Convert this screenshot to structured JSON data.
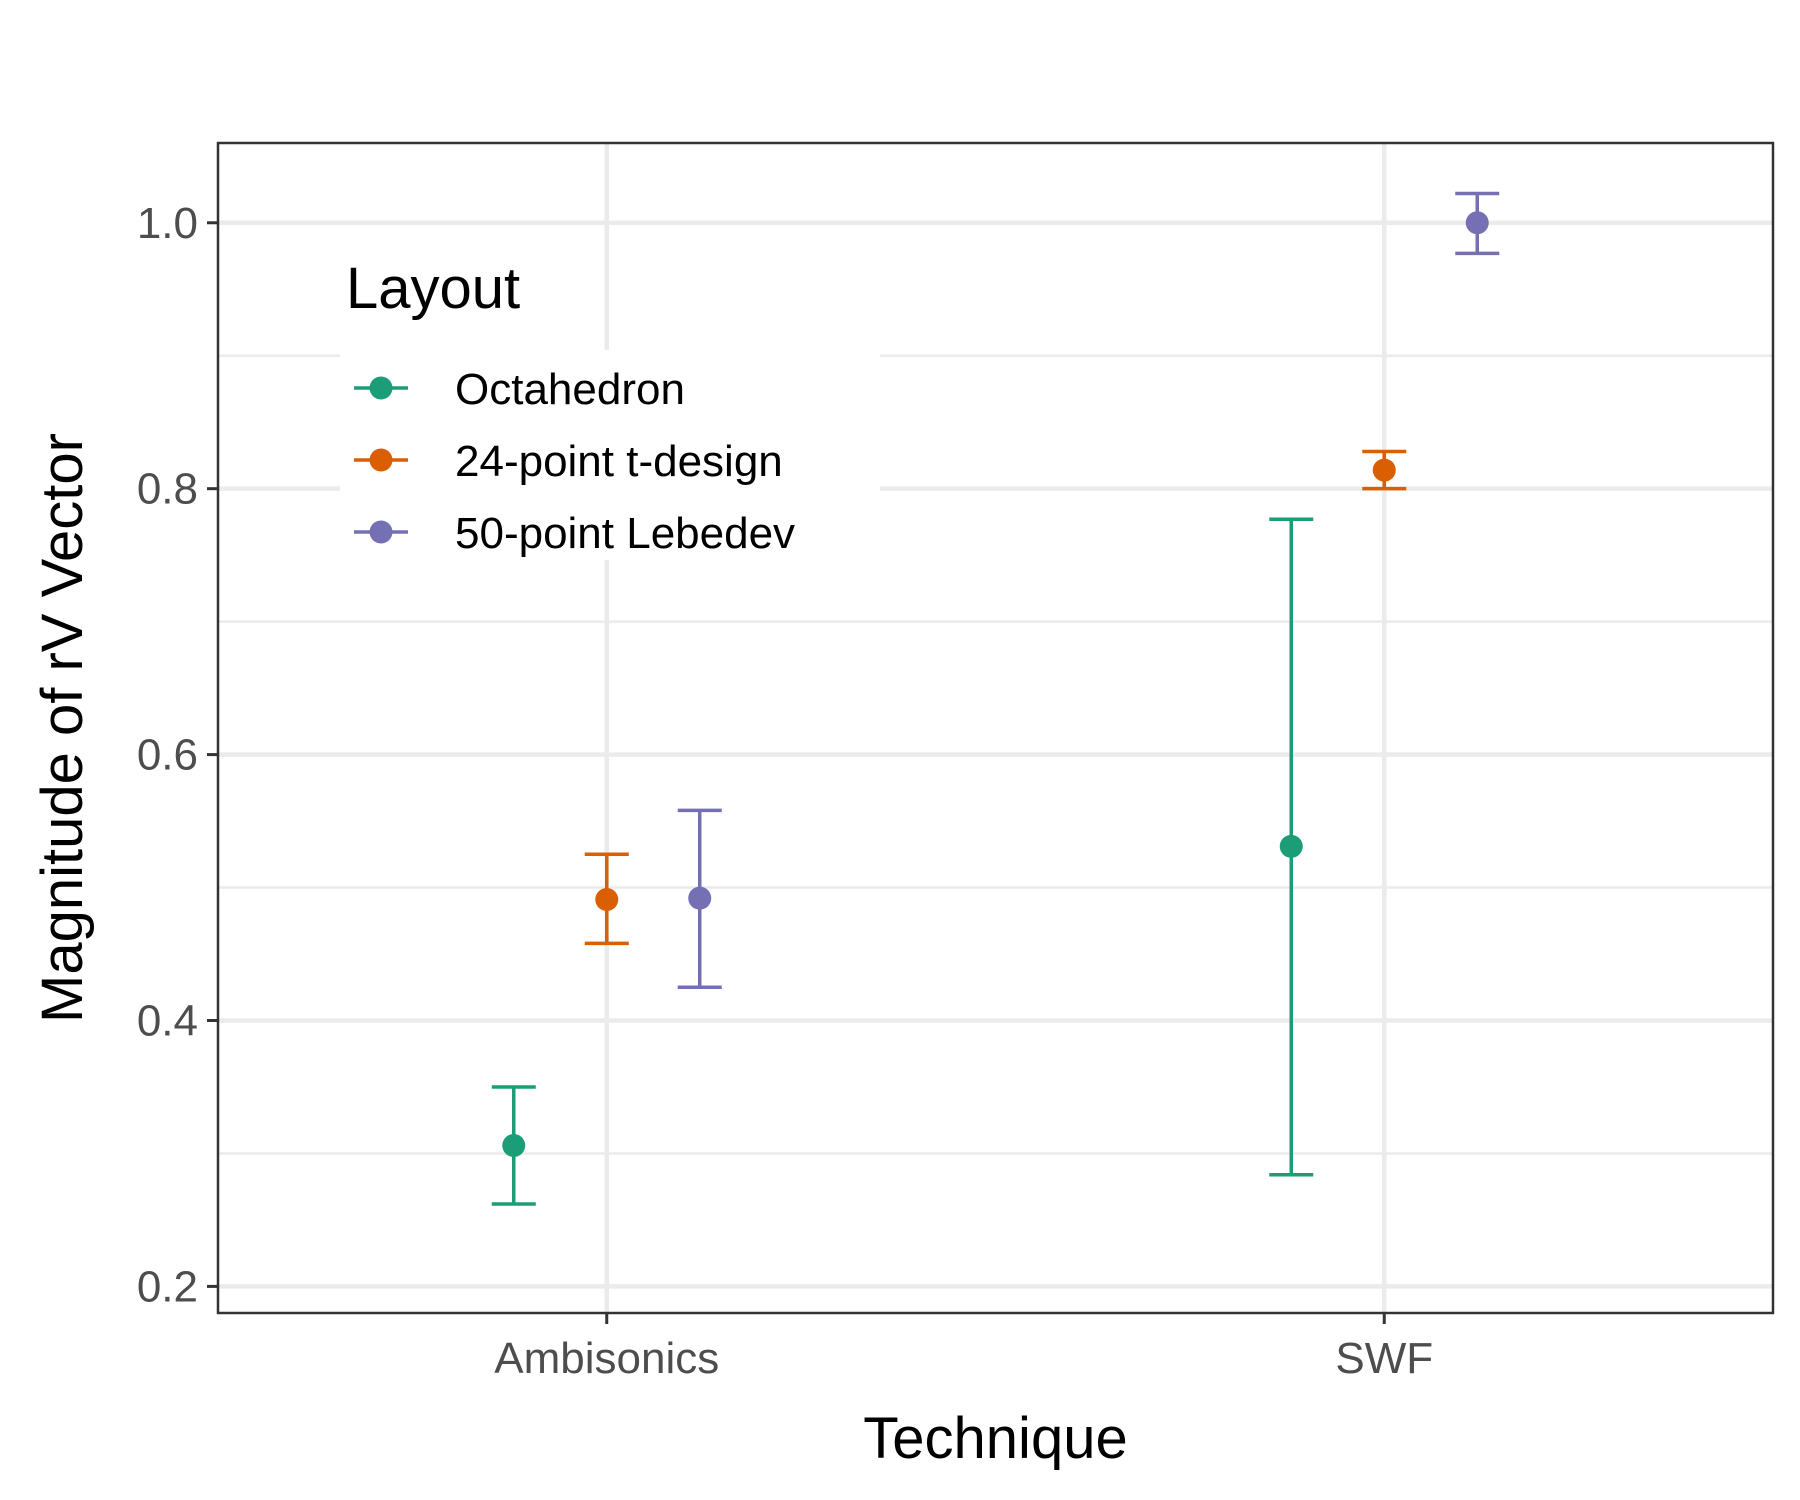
{
  "chart_data": {
    "type": "scatter",
    "subtype": "errorbar",
    "title": "",
    "xlabel": "Technique",
    "ylabel": "Magnitude of rV Vector",
    "categories": [
      "Ambisonics",
      "SWF"
    ],
    "ylim": [
      0.18,
      1.06
    ],
    "yticks": [
      0.2,
      0.4,
      0.6,
      0.8,
      1.0
    ],
    "ytick_labels": [
      "0.2",
      "0.4",
      "0.6",
      "0.8",
      "1.0"
    ],
    "grid": true,
    "legend": {
      "title": "Layout",
      "position": "top-left-inside"
    },
    "series": [
      {
        "name": "Octahedron",
        "color": "#1b9e77",
        "values": [
          0.306,
          0.531
        ],
        "lower": [
          0.262,
          0.284
        ],
        "upper": [
          0.35,
          0.777
        ]
      },
      {
        "name": "24-point t-design",
        "color": "#d95f02",
        "values": [
          0.491,
          0.814
        ],
        "lower": [
          0.458,
          0.8
        ],
        "upper": [
          0.525,
          0.828
        ]
      },
      {
        "name": "50-point Lebedev",
        "color": "#7570b3",
        "values": [
          0.492,
          1.0
        ],
        "lower": [
          0.425,
          0.977
        ],
        "upper": [
          0.558,
          1.022
        ]
      }
    ]
  }
}
